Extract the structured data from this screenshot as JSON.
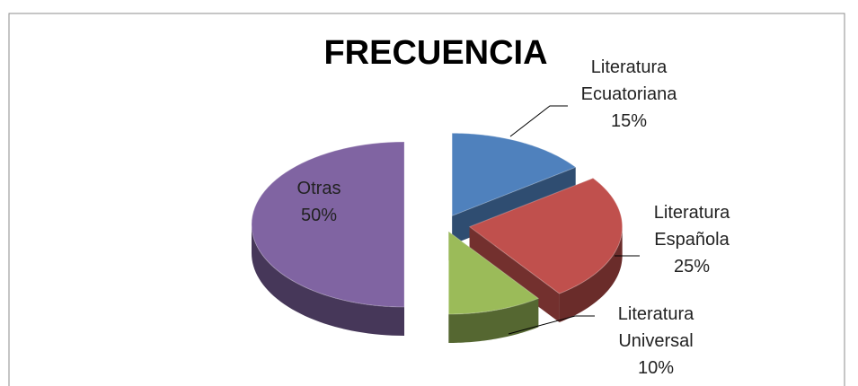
{
  "chart_data": {
    "type": "pie",
    "title": "FRECUENCIA",
    "categories": [
      "Literatura Ecuatoriana",
      "Literatura Española",
      "Literatura Universal",
      "Otras"
    ],
    "values": [
      15,
      25,
      10,
      50
    ],
    "value_labels": [
      "15%",
      "25%",
      "10%",
      "50%"
    ],
    "colors": [
      "#4f81bd",
      "#c0504d",
      "#9bbb59",
      "#8064a2"
    ]
  }
}
